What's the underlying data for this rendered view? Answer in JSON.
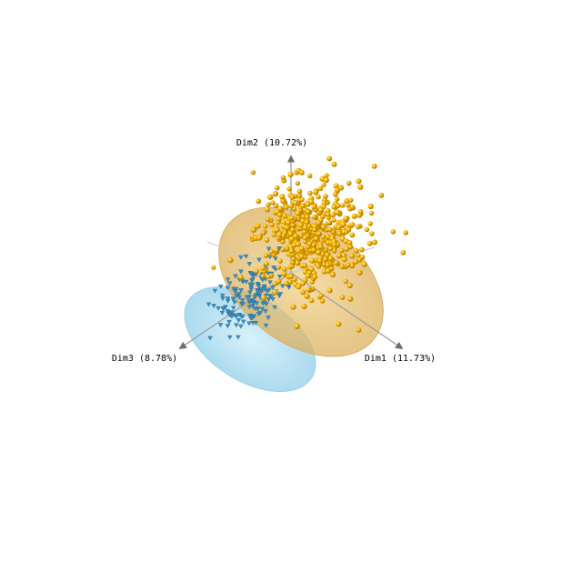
{
  "chart_data": {
    "type": "scatter",
    "title": "",
    "axes": {
      "dim1": "Dim1 (11.73%)",
      "dim2": "Dim2 (10.72%)",
      "dim3": "Dim3 (8.78%)"
    },
    "grid": false,
    "legend": "none",
    "series": [
      {
        "marker": "sphere",
        "color": "#f5b400",
        "ellipse_color": "#e7c27a",
        "count": 520,
        "center": [
          0.9,
          1.6
        ],
        "spread": [
          2.2,
          2.0
        ],
        "tilt": 35
      },
      {
        "marker": "triangle",
        "color": "#3d8fc2",
        "ellipse_color": "#a9d9ef",
        "count": 160,
        "center": [
          -1.7,
          -1.0
        ],
        "spread": [
          1.1,
          1.7
        ],
        "tilt": -40
      }
    ]
  }
}
